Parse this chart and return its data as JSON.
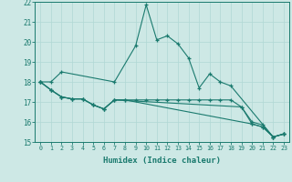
{
  "title": "",
  "xlabel": "Humidex (Indice chaleur)",
  "ylabel": "",
  "xlim": [
    -0.5,
    23.5
  ],
  "ylim": [
    15,
    22
  ],
  "yticks": [
    15,
    16,
    17,
    18,
    19,
    20,
    21,
    22
  ],
  "xticks": [
    0,
    1,
    2,
    3,
    4,
    5,
    6,
    7,
    8,
    9,
    10,
    11,
    12,
    13,
    14,
    15,
    16,
    17,
    18,
    19,
    20,
    21,
    22,
    23
  ],
  "bg_color": "#cde8e5",
  "line_color": "#1a7a6e",
  "grid_color": "#b0d8d4",
  "line1_x": [
    0,
    1,
    2,
    7,
    9,
    10,
    11,
    12,
    13,
    14,
    15,
    16,
    17,
    18,
    22,
    23
  ],
  "line1_y": [
    18.0,
    18.0,
    18.5,
    18.0,
    19.8,
    21.85,
    20.1,
    20.3,
    19.9,
    19.2,
    17.7,
    18.4,
    18.0,
    17.8,
    15.25,
    15.4
  ],
  "line2_x": [
    0,
    1,
    2,
    3,
    4,
    5,
    6,
    7,
    19,
    20,
    21,
    22,
    23
  ],
  "line2_y": [
    18.0,
    17.6,
    17.25,
    17.15,
    17.15,
    16.85,
    16.65,
    17.1,
    16.75,
    16.0,
    15.85,
    15.25,
    15.4
  ],
  "line3_x": [
    0,
    1,
    2,
    3,
    4,
    5,
    6,
    7,
    8,
    20,
    21,
    22,
    23
  ],
  "line3_y": [
    18.0,
    17.6,
    17.25,
    17.15,
    17.15,
    16.85,
    16.65,
    17.1,
    17.1,
    15.9,
    15.75,
    15.25,
    15.4
  ],
  "line4_x": [
    0,
    1,
    2,
    3,
    4,
    5,
    6,
    7,
    8,
    9,
    10,
    11,
    12,
    13,
    14,
    15,
    16,
    17,
    18,
    19,
    20,
    21,
    22,
    23
  ],
  "line4_y": [
    18.0,
    17.6,
    17.25,
    17.15,
    17.15,
    16.85,
    16.65,
    17.1,
    17.1,
    17.1,
    17.1,
    17.1,
    17.1,
    17.1,
    17.1,
    17.1,
    17.1,
    17.1,
    17.1,
    16.75,
    15.9,
    15.75,
    15.25,
    15.4
  ]
}
